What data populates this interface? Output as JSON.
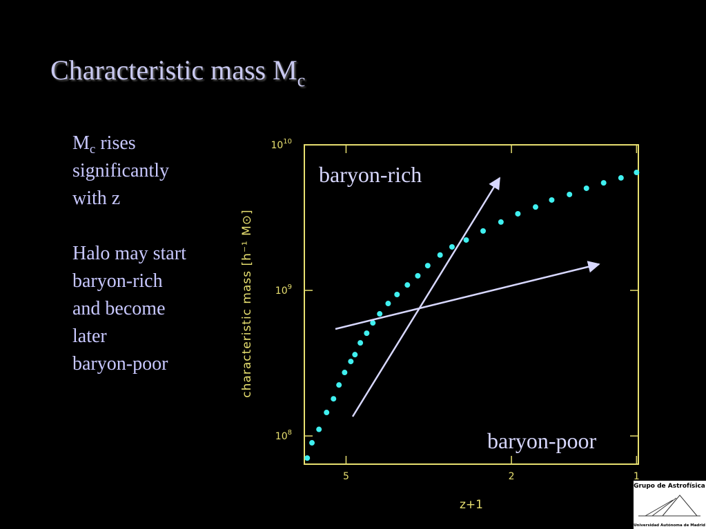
{
  "slide": {
    "title": "Characteristic mass M",
    "title_subscript": "c",
    "p1_symbol": "M",
    "p1_subscript": "c",
    "p1_lines": [
      "rises",
      "significantly",
      "with z"
    ],
    "p2_lines": [
      "Halo may start",
      "baryon-rich",
      "and become",
      "later",
      "baryon-poor"
    ],
    "logo_top": "Grupo de Astrofísica",
    "logo_bottom": "Universidad Autónoma de Madrid"
  },
  "chart_data": {
    "type": "scatter",
    "xlabel": "z+1",
    "ylabel": "characteristic mass  [h⁻¹ M⊙]",
    "xscale": "log",
    "yscale": "log",
    "color": "#40f0f0",
    "xlim": [
      6.3,
      0.99
    ],
    "xticks": [
      5,
      2,
      1
    ],
    "ylim": [
      64000000,
      10000000000
    ],
    "yticks": [
      {
        "value": 100000000,
        "label": "10",
        "exponent": "8"
      },
      {
        "value": 1000000000,
        "label": "10",
        "exponent": "9"
      },
      {
        "value": 10000000000,
        "label": "10",
        "exponent": "10"
      }
    ],
    "annotations": [
      "baryon-rich",
      "baryon-poor"
    ],
    "x": [
      6.2,
      6.04,
      5.81,
      5.57,
      5.36,
      5.2,
      5.04,
      4.87,
      4.76,
      4.62,
      4.46,
      4.31,
      4.15,
      3.96,
      3.77,
      3.56,
      3.36,
      3.18,
      2.97,
      2.78,
      2.57,
      2.34,
      2.12,
      1.93,
      1.75,
      1.6,
      1.45,
      1.32,
      1.2,
      1.09,
      1.0
    ],
    "values": [
      70500000,
      89700000,
      111000000,
      145000000,
      180000000,
      224000000,
      273000000,
      325000000,
      362000000,
      436000000,
      508000000,
      598000000,
      690000000,
      813000000,
      937000000,
      1090000000,
      1260000000,
      1480000000,
      1750000000,
      1990000000,
      2220000000,
      2560000000,
      2950000000,
      3360000000,
      3740000000,
      4180000000,
      4560000000,
      5030000000,
      5480000000,
      5930000000,
      6460000000
    ]
  }
}
